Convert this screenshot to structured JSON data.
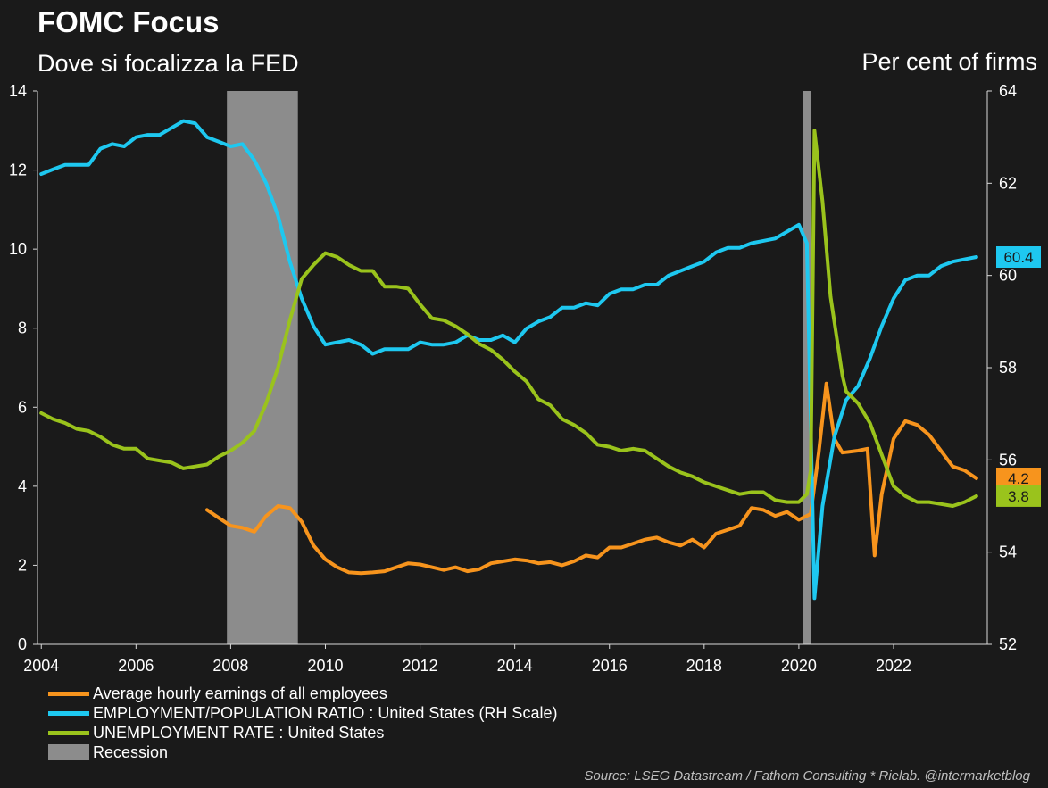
{
  "header": {
    "title": "FOMC Focus",
    "subtitle": "Dove si focalizza la FED",
    "right_axis_title": "Per cent of firms"
  },
  "footer": {
    "source": "Source: LSEG Datastream / Fathom Consulting * Rielab. @intermarketblog"
  },
  "colors": {
    "background": "#1a1a1a",
    "earnings": "#f7941d",
    "employment": "#1ec8f0",
    "unemployment": "#9ac31c",
    "recession": "#8c8c8c"
  },
  "chart_data": {
    "type": "line",
    "title": "FOMC Focus",
    "subtitle": "Dove si focalizza la FED",
    "x_ticks": [
      "2004",
      "2006",
      "2008",
      "2010",
      "2012",
      "2014",
      "2016",
      "2018",
      "2020",
      "2022"
    ],
    "xlim": [
      2003.92,
      2023.98
    ],
    "left_axis": {
      "ylim": [
        0,
        14
      ],
      "ticks": [
        "0",
        "2",
        "4",
        "6",
        "8",
        "10",
        "12",
        "14"
      ]
    },
    "right_axis": {
      "ylabel": "Per cent of firms",
      "ylim": [
        52,
        64
      ],
      "ticks": [
        "52",
        "54",
        "56",
        "58",
        "60",
        "62",
        "64"
      ]
    },
    "recessions": [
      [
        2007.92,
        2009.42
      ],
      [
        2020.08,
        2020.25
      ]
    ],
    "end_labels": [
      {
        "series": "employment",
        "text": "60.4"
      },
      {
        "series": "earnings",
        "text": "4.2"
      },
      {
        "series": "unemployment",
        "text": "3.8"
      }
    ],
    "series": [
      {
        "key": "earnings",
        "name": "Average hourly earnings of all employees",
        "axis": "left",
        "points": [
          [
            2007.5,
            3.4
          ],
          [
            2007.75,
            3.2
          ],
          [
            2008.0,
            3.0
          ],
          [
            2008.25,
            2.95
          ],
          [
            2008.5,
            2.85
          ],
          [
            2008.75,
            3.25
          ],
          [
            2009.0,
            3.5
          ],
          [
            2009.25,
            3.45
          ],
          [
            2009.5,
            3.1
          ],
          [
            2009.75,
            2.5
          ],
          [
            2010.0,
            2.15
          ],
          [
            2010.25,
            1.95
          ],
          [
            2010.5,
            1.82
          ],
          [
            2010.75,
            1.8
          ],
          [
            2011.0,
            1.82
          ],
          [
            2011.25,
            1.85
          ],
          [
            2011.5,
            1.95
          ],
          [
            2011.75,
            2.05
          ],
          [
            2012.0,
            2.02
          ],
          [
            2012.25,
            1.95
          ],
          [
            2012.5,
            1.88
          ],
          [
            2012.75,
            1.95
          ],
          [
            2013.0,
            1.85
          ],
          [
            2013.25,
            1.9
          ],
          [
            2013.5,
            2.05
          ],
          [
            2013.75,
            2.1
          ],
          [
            2014.0,
            2.15
          ],
          [
            2014.25,
            2.12
          ],
          [
            2014.5,
            2.05
          ],
          [
            2014.75,
            2.08
          ],
          [
            2015.0,
            2.0
          ],
          [
            2015.25,
            2.1
          ],
          [
            2015.5,
            2.25
          ],
          [
            2015.75,
            2.2
          ],
          [
            2016.0,
            2.45
          ],
          [
            2016.25,
            2.45
          ],
          [
            2016.5,
            2.55
          ],
          [
            2016.75,
            2.65
          ],
          [
            2017.0,
            2.7
          ],
          [
            2017.25,
            2.58
          ],
          [
            2017.5,
            2.5
          ],
          [
            2017.75,
            2.65
          ],
          [
            2018.0,
            2.45
          ],
          [
            2018.25,
            2.8
          ],
          [
            2018.5,
            2.9
          ],
          [
            2018.75,
            3.0
          ],
          [
            2019.0,
            3.45
          ],
          [
            2019.25,
            3.4
          ],
          [
            2019.5,
            3.25
          ],
          [
            2019.75,
            3.35
          ],
          [
            2020.0,
            3.15
          ],
          [
            2020.25,
            3.3
          ],
          [
            2020.42,
            4.85
          ],
          [
            2020.58,
            6.6
          ],
          [
            2020.75,
            5.2
          ],
          [
            2020.92,
            4.85
          ],
          [
            2021.25,
            4.9
          ],
          [
            2021.45,
            4.95
          ],
          [
            2021.6,
            2.25
          ],
          [
            2021.75,
            3.8
          ],
          [
            2022.0,
            5.2
          ],
          [
            2022.25,
            5.65
          ],
          [
            2022.5,
            5.55
          ],
          [
            2022.75,
            5.3
          ],
          [
            2023.0,
            4.9
          ],
          [
            2023.25,
            4.5
          ],
          [
            2023.5,
            4.4
          ],
          [
            2023.75,
            4.2
          ]
        ]
      },
      {
        "key": "employment",
        "name": "EMPLOYMENT/POPULATION RATIO : United States (RH Scale)",
        "axis": "right",
        "points": [
          [
            2004.0,
            62.2
          ],
          [
            2004.25,
            62.3
          ],
          [
            2004.5,
            62.4
          ],
          [
            2004.75,
            62.4
          ],
          [
            2005.0,
            62.4
          ],
          [
            2005.25,
            62.75
          ],
          [
            2005.5,
            62.85
          ],
          [
            2005.75,
            62.8
          ],
          [
            2006.0,
            63.0
          ],
          [
            2006.25,
            63.05
          ],
          [
            2006.5,
            63.05
          ],
          [
            2006.75,
            63.2
          ],
          [
            2007.0,
            63.35
          ],
          [
            2007.25,
            63.3
          ],
          [
            2007.5,
            63.0
          ],
          [
            2007.75,
            62.9
          ],
          [
            2008.0,
            62.8
          ],
          [
            2008.25,
            62.85
          ],
          [
            2008.5,
            62.5
          ],
          [
            2008.75,
            62.0
          ],
          [
            2009.0,
            61.3
          ],
          [
            2009.25,
            60.3
          ],
          [
            2009.5,
            59.5
          ],
          [
            2009.75,
            58.9
          ],
          [
            2010.0,
            58.5
          ],
          [
            2010.25,
            58.55
          ],
          [
            2010.5,
            58.6
          ],
          [
            2010.75,
            58.5
          ],
          [
            2011.0,
            58.3
          ],
          [
            2011.25,
            58.4
          ],
          [
            2011.5,
            58.4
          ],
          [
            2011.75,
            58.4
          ],
          [
            2012.0,
            58.55
          ],
          [
            2012.25,
            58.5
          ],
          [
            2012.5,
            58.5
          ],
          [
            2012.75,
            58.55
          ],
          [
            2013.0,
            58.7
          ],
          [
            2013.25,
            58.6
          ],
          [
            2013.5,
            58.6
          ],
          [
            2013.75,
            58.7
          ],
          [
            2014.0,
            58.55
          ],
          [
            2014.25,
            58.85
          ],
          [
            2014.5,
            59.0
          ],
          [
            2014.75,
            59.1
          ],
          [
            2015.0,
            59.3
          ],
          [
            2015.25,
            59.3
          ],
          [
            2015.5,
            59.4
          ],
          [
            2015.75,
            59.35
          ],
          [
            2016.0,
            59.6
          ],
          [
            2016.25,
            59.7
          ],
          [
            2016.5,
            59.7
          ],
          [
            2016.75,
            59.8
          ],
          [
            2017.0,
            59.8
          ],
          [
            2017.25,
            60.0
          ],
          [
            2017.5,
            60.1
          ],
          [
            2017.75,
            60.2
          ],
          [
            2018.0,
            60.3
          ],
          [
            2018.25,
            60.5
          ],
          [
            2018.5,
            60.6
          ],
          [
            2018.75,
            60.6
          ],
          [
            2019.0,
            60.7
          ],
          [
            2019.25,
            60.75
          ],
          [
            2019.5,
            60.8
          ],
          [
            2019.75,
            60.95
          ],
          [
            2020.0,
            61.1
          ],
          [
            2020.17,
            60.7
          ],
          [
            2020.33,
            53.0
          ],
          [
            2020.5,
            55.0
          ],
          [
            2020.75,
            56.5
          ],
          [
            2021.0,
            57.3
          ],
          [
            2021.25,
            57.6
          ],
          [
            2021.5,
            58.2
          ],
          [
            2021.75,
            58.9
          ],
          [
            2022.0,
            59.5
          ],
          [
            2022.25,
            59.9
          ],
          [
            2022.5,
            60.0
          ],
          [
            2022.75,
            60.0
          ],
          [
            2023.0,
            60.2
          ],
          [
            2023.25,
            60.3
          ],
          [
            2023.5,
            60.35
          ],
          [
            2023.75,
            60.4
          ]
        ]
      },
      {
        "key": "unemployment",
        "name": "UNEMPLOYMENT RATE : United States",
        "axis": "left",
        "points": [
          [
            2004.0,
            5.85
          ],
          [
            2004.25,
            5.7
          ],
          [
            2004.5,
            5.6
          ],
          [
            2004.75,
            5.45
          ],
          [
            2005.0,
            5.4
          ],
          [
            2005.25,
            5.25
          ],
          [
            2005.5,
            5.05
          ],
          [
            2005.75,
            4.95
          ],
          [
            2006.0,
            4.95
          ],
          [
            2006.25,
            4.7
          ],
          [
            2006.5,
            4.65
          ],
          [
            2006.75,
            4.6
          ],
          [
            2007.0,
            4.45
          ],
          [
            2007.25,
            4.5
          ],
          [
            2007.5,
            4.55
          ],
          [
            2007.75,
            4.75
          ],
          [
            2008.0,
            4.9
          ],
          [
            2008.25,
            5.1
          ],
          [
            2008.5,
            5.4
          ],
          [
            2008.75,
            6.1
          ],
          [
            2009.0,
            7.0
          ],
          [
            2009.25,
            8.2
          ],
          [
            2009.5,
            9.25
          ],
          [
            2009.75,
            9.6
          ],
          [
            2010.0,
            9.9
          ],
          [
            2010.25,
            9.8
          ],
          [
            2010.5,
            9.6
          ],
          [
            2010.75,
            9.45
          ],
          [
            2011.0,
            9.45
          ],
          [
            2011.25,
            9.05
          ],
          [
            2011.5,
            9.05
          ],
          [
            2011.75,
            9.0
          ],
          [
            2012.0,
            8.6
          ],
          [
            2012.25,
            8.25
          ],
          [
            2012.5,
            8.2
          ],
          [
            2012.75,
            8.05
          ],
          [
            2013.0,
            7.85
          ],
          [
            2013.25,
            7.6
          ],
          [
            2013.5,
            7.45
          ],
          [
            2013.75,
            7.2
          ],
          [
            2014.0,
            6.9
          ],
          [
            2014.25,
            6.65
          ],
          [
            2014.5,
            6.2
          ],
          [
            2014.75,
            6.05
          ],
          [
            2015.0,
            5.7
          ],
          [
            2015.25,
            5.55
          ],
          [
            2015.5,
            5.35
          ],
          [
            2015.75,
            5.05
          ],
          [
            2016.0,
            5.0
          ],
          [
            2016.25,
            4.9
          ],
          [
            2016.5,
            4.95
          ],
          [
            2016.75,
            4.9
          ],
          [
            2017.0,
            4.7
          ],
          [
            2017.25,
            4.5
          ],
          [
            2017.5,
            4.35
          ],
          [
            2017.75,
            4.25
          ],
          [
            2018.0,
            4.1
          ],
          [
            2018.25,
            4.0
          ],
          [
            2018.5,
            3.9
          ],
          [
            2018.75,
            3.8
          ],
          [
            2019.0,
            3.85
          ],
          [
            2019.25,
            3.85
          ],
          [
            2019.5,
            3.65
          ],
          [
            2019.75,
            3.6
          ],
          [
            2020.0,
            3.6
          ],
          [
            2020.17,
            3.8
          ],
          [
            2020.25,
            4.4
          ],
          [
            2020.33,
            13.0
          ],
          [
            2020.5,
            11.2
          ],
          [
            2020.67,
            8.8
          ],
          [
            2020.92,
            6.8
          ],
          [
            2021.0,
            6.4
          ],
          [
            2021.25,
            6.1
          ],
          [
            2021.5,
            5.6
          ],
          [
            2021.75,
            4.8
          ],
          [
            2022.0,
            4.0
          ],
          [
            2022.25,
            3.75
          ],
          [
            2022.5,
            3.6
          ],
          [
            2022.75,
            3.6
          ],
          [
            2023.0,
            3.55
          ],
          [
            2023.25,
            3.5
          ],
          [
            2023.5,
            3.6
          ],
          [
            2023.75,
            3.75
          ]
        ]
      }
    ],
    "legend": [
      {
        "key": "earnings",
        "label": "Average hourly earnings of all employees"
      },
      {
        "key": "employment",
        "label": "EMPLOYMENT/POPULATION RATIO : United States (RH Scale)"
      },
      {
        "key": "unemployment",
        "label": "UNEMPLOYMENT RATE : United States"
      },
      {
        "key": "recession",
        "label": "Recession"
      }
    ],
    "legend_position": "bottom-left",
    "grid": false
  }
}
